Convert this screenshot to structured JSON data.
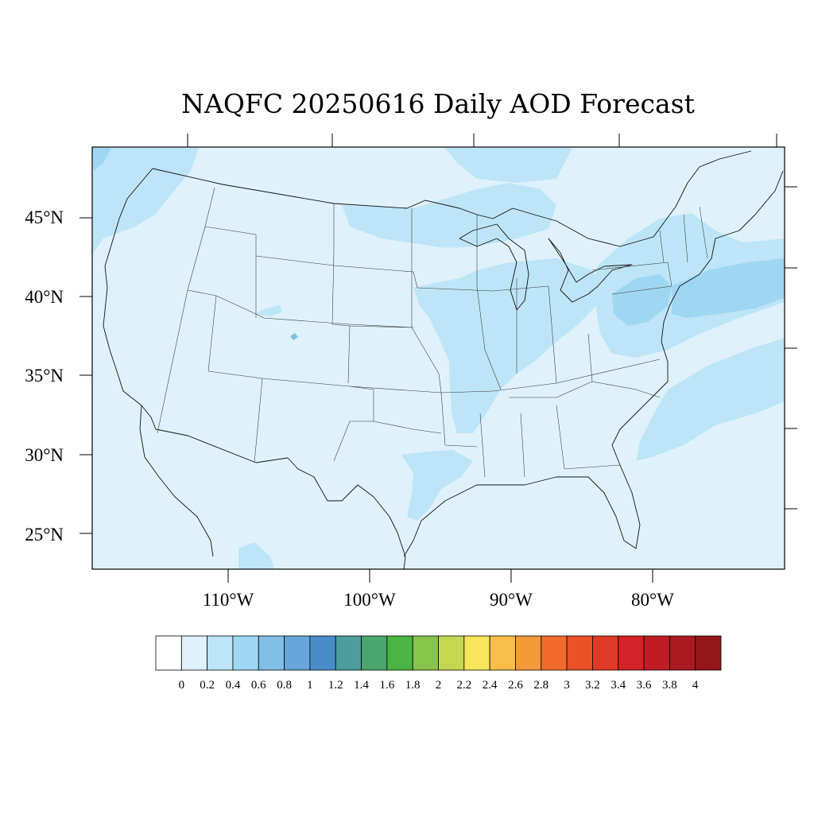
{
  "title": "NAQFC 20250616 Daily AOD Forecast",
  "map": {
    "lon_range": [
      -119,
      -70
    ],
    "lat_range": [
      22.7,
      49.4
    ],
    "lat_labels": [
      "45°N",
      "40°N",
      "35°N",
      "30°N",
      "25°N"
    ],
    "lat_ticks": [
      45,
      40,
      35,
      30,
      25
    ],
    "lon_labels": [
      "110°W",
      "100°W",
      "90°W",
      "80°W"
    ],
    "lon_ticks": [
      -110,
      -100,
      -90,
      -80
    ]
  },
  "colorbar": {
    "labels": [
      "0",
      "0.2",
      "0.4",
      "0.6",
      "0.8",
      "1",
      "1.2",
      "1.4",
      "1.6",
      "1.8",
      "2",
      "2.2",
      "2.4",
      "2.6",
      "2.8",
      "3",
      "3.2",
      "3.4",
      "3.6",
      "3.8",
      "4"
    ],
    "colors": [
      "#ffffff",
      "#dff2fb",
      "#bde5f7",
      "#9fd7f2",
      "#82bfe6",
      "#66a6da",
      "#4a8cca",
      "#4b9c9b",
      "#4aa56f",
      "#4bb544",
      "#86c44b",
      "#c5d653",
      "#f7e45b",
      "#f7be4a",
      "#f59a3b",
      "#f26b2b",
      "#ea5228",
      "#e03a26",
      "#d42228",
      "#be1d24",
      "#aa1a20",
      "#93161b"
    ]
  },
  "chart_data": {
    "type": "heatmap",
    "title": "NAQFC 20250616 Daily AOD Forecast",
    "variable": "AOD",
    "date": "20250616",
    "levels": [
      0,
      0.2,
      0.4,
      0.6,
      0.8,
      1,
      1.2,
      1.4,
      1.6,
      1.8,
      2,
      2.2,
      2.4,
      2.6,
      2.8,
      3,
      3.2,
      3.4,
      3.6,
      3.8,
      4
    ],
    "lon_range": [
      -119,
      -70
    ],
    "lat_range": [
      22.7,
      49.4
    ],
    "background_bin": [
      0,
      0.2
    ],
    "regions": [
      {
        "name": "Midwest / Mississippi Valley",
        "bin": [
          0.2,
          0.4
        ]
      },
      {
        "name": "Upper Midwest / Great Lakes",
        "bin": [
          0.2,
          0.4
        ]
      },
      {
        "name": "Pacific Northwest coast",
        "bin": [
          0.2,
          0.4
        ]
      },
      {
        "name": "Northeast",
        "bin": [
          0.2,
          0.4
        ]
      },
      {
        "name": "Mid-Atlantic (Pennsylvania / New Jersey)",
        "bin": [
          0.4,
          0.6
        ]
      },
      {
        "name": "Atlantic offshore plume",
        "bin": [
          0.4,
          0.6
        ]
      },
      {
        "name": "Southeast Atlantic offshore",
        "bin": [
          0.2,
          0.4
        ]
      },
      {
        "name": "Texas / Louisiana Gulf coast",
        "bin": [
          0.2,
          0.4
        ]
      },
      {
        "name": "Colorado point",
        "bin": [
          0.6,
          0.8
        ]
      }
    ]
  }
}
